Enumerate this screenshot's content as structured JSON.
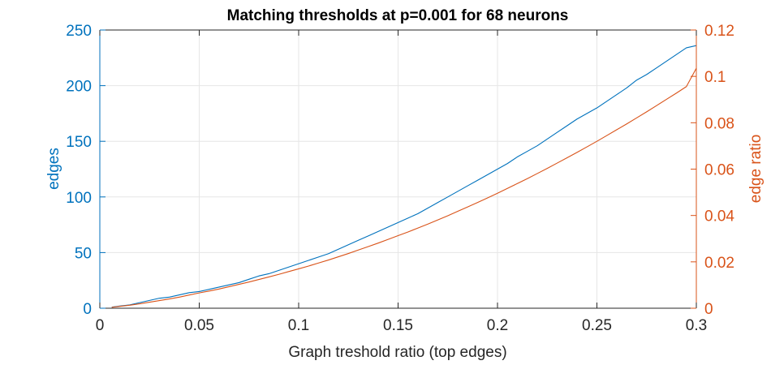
{
  "chart_data": {
    "type": "line",
    "title": "Matching thresholds at p=0.001 for 68 neurons",
    "xlabel": "Graph treshold ratio (top edges)",
    "ylabel_left": "edges",
    "ylabel_right": "edge ratio",
    "xlim": [
      0,
      0.3
    ],
    "ylim_left": [
      0,
      250
    ],
    "ylim_right": [
      0,
      0.12
    ],
    "x_ticks": [
      0,
      0.05,
      0.1,
      0.15,
      0.2,
      0.25,
      0.3
    ],
    "x_tick_labels": [
      "0",
      "0.05",
      "0.1",
      "0.15",
      "0.2",
      "0.25",
      "0.3"
    ],
    "y_left_ticks": [
      0,
      50,
      100,
      150,
      200,
      250
    ],
    "y_left_tick_labels": [
      "0",
      "50",
      "100",
      "150",
      "200",
      "250"
    ],
    "y_right_ticks": [
      0,
      0.02,
      0.04,
      0.06,
      0.08,
      0.1,
      0.12
    ],
    "y_right_tick_labels": [
      "0",
      "0.02",
      "0.04",
      "0.06",
      "0.08",
      "0.1",
      "0.12"
    ],
    "grid": true,
    "colors": {
      "left_axis": "#0072BD",
      "right_axis": "#D95319",
      "grid": "#e6e6e6",
      "frame": "#262626"
    },
    "series": [
      {
        "axis": "left",
        "color": "#0072BD",
        "x": [
          0.006,
          0.01,
          0.015,
          0.02,
          0.025,
          0.03,
          0.035,
          0.04,
          0.045,
          0.05,
          0.055,
          0.06,
          0.065,
          0.07,
          0.075,
          0.08,
          0.085,
          0.09,
          0.095,
          0.1,
          0.105,
          0.11,
          0.115,
          0.12,
          0.125,
          0.13,
          0.135,
          0.14,
          0.145,
          0.15,
          0.155,
          0.16,
          0.165,
          0.17,
          0.175,
          0.18,
          0.185,
          0.19,
          0.195,
          0.2,
          0.205,
          0.21,
          0.215,
          0.22,
          0.225,
          0.23,
          0.235,
          0.24,
          0.245,
          0.25,
          0.255,
          0.26,
          0.265,
          0.27,
          0.275,
          0.28,
          0.285,
          0.29,
          0.295,
          0.3
        ],
        "y": [
          1,
          2,
          3,
          5,
          7,
          9,
          10,
          12,
          14,
          15,
          17,
          19,
          21,
          23,
          26,
          29,
          31,
          34,
          37,
          40,
          43,
          46,
          49,
          53,
          57,
          61,
          65,
          69,
          73,
          77,
          81,
          85,
          90,
          95,
          100,
          105,
          110,
          115,
          120,
          125,
          130,
          136,
          141,
          146,
          152,
          158,
          164,
          170,
          175,
          180,
          186,
          192,
          198,
          205,
          210,
          216,
          222,
          228,
          234,
          236
        ]
      },
      {
        "axis": "right",
        "color": "#D95319",
        "x": [
          0.006,
          0.01,
          0.015,
          0.02,
          0.025,
          0.03,
          0.035,
          0.04,
          0.045,
          0.05,
          0.055,
          0.06,
          0.065,
          0.07,
          0.075,
          0.08,
          0.085,
          0.09,
          0.095,
          0.1,
          0.105,
          0.11,
          0.115,
          0.12,
          0.125,
          0.13,
          0.135,
          0.14,
          0.145,
          0.15,
          0.155,
          0.16,
          0.165,
          0.17,
          0.175,
          0.18,
          0.185,
          0.19,
          0.195,
          0.2,
          0.205,
          0.21,
          0.215,
          0.22,
          0.225,
          0.23,
          0.235,
          0.24,
          0.245,
          0.25,
          0.255,
          0.26,
          0.265,
          0.27,
          0.275,
          0.28,
          0.285,
          0.29,
          0.295,
          0.3
        ],
        "y": [
          0.0004,
          0.0008,
          0.0013,
          0.0019,
          0.0026,
          0.0033,
          0.004,
          0.0048,
          0.0057,
          0.0066,
          0.0074,
          0.0083,
          0.0093,
          0.0103,
          0.0113,
          0.0124,
          0.0135,
          0.0146,
          0.0158,
          0.017,
          0.0182,
          0.0195,
          0.0208,
          0.0222,
          0.0236,
          0.0251,
          0.0266,
          0.0281,
          0.0297,
          0.0313,
          0.0329,
          0.0346,
          0.0363,
          0.0381,
          0.0399,
          0.0418,
          0.0437,
          0.0456,
          0.0476,
          0.0496,
          0.0517,
          0.0538,
          0.0559,
          0.0581,
          0.0603,
          0.0626,
          0.0649,
          0.0672,
          0.0696,
          0.072,
          0.0745,
          0.077,
          0.0795,
          0.0821,
          0.0847,
          0.0874,
          0.0901,
          0.0928,
          0.0956,
          0.1035
        ]
      }
    ]
  }
}
